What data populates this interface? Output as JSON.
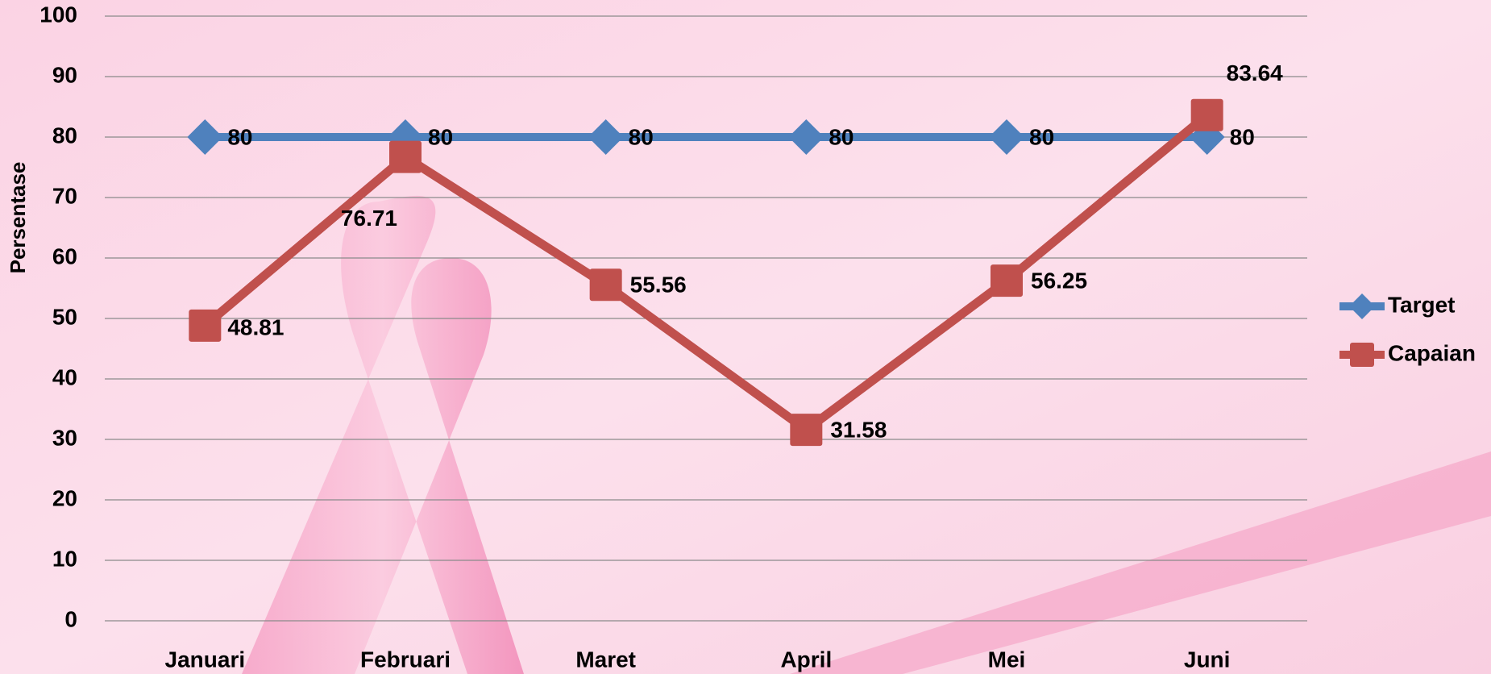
{
  "chart_data": {
    "type": "line",
    "y_label": "Persentase",
    "categories": [
      "Januari",
      "Februari",
      "Maret",
      "April",
      "Mei",
      "Juni"
    ],
    "series": [
      {
        "name": "Target",
        "color": "#4f81bd",
        "marker": "diamond",
        "values": [
          80,
          80,
          80,
          80,
          80,
          80
        ]
      },
      {
        "name": "Capaian",
        "color": "#c0504d",
        "marker": "square",
        "values": [
          48.81,
          76.71,
          55.56,
          31.58,
          56.25,
          83.64
        ]
      }
    ],
    "ylim": [
      0,
      100
    ],
    "yticks": [
      0,
      10,
      20,
      30,
      40,
      50,
      60,
      70,
      80,
      90,
      100
    ],
    "grid": true,
    "legend": "right"
  }
}
